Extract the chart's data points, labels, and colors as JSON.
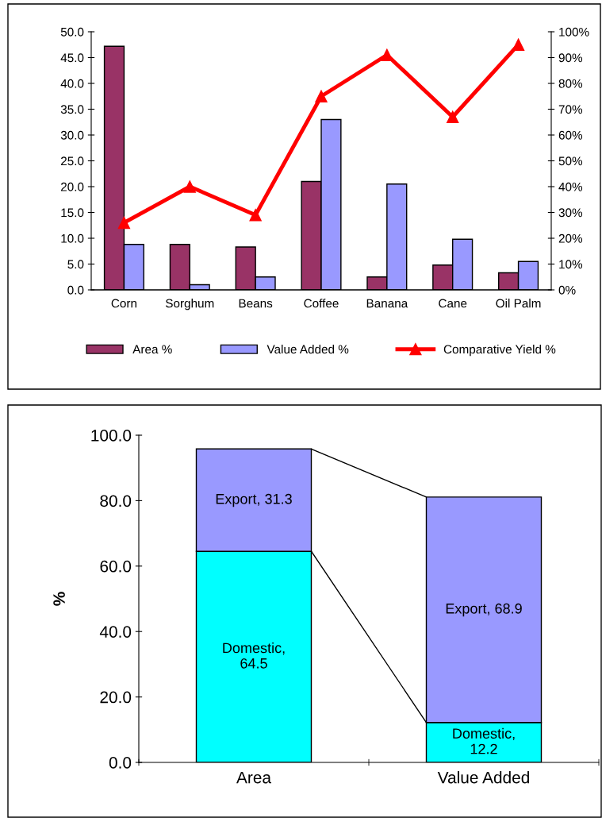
{
  "chart_data": [
    {
      "type": "bar",
      "categories": [
        "Corn",
        "Sorghum",
        "Beans",
        "Coffee",
        "Banana",
        "Cane",
        "Oil Palm"
      ],
      "series": [
        {
          "name": "Area %",
          "color": "#993366",
          "values": [
            47.2,
            8.8,
            8.3,
            21.0,
            2.5,
            4.8,
            3.3
          ]
        },
        {
          "name": "Value Added %",
          "color": "#9999ff",
          "values": [
            8.8,
            1.0,
            2.5,
            33.0,
            20.5,
            9.8,
            5.5
          ]
        },
        {
          "name": "Comparative Yield %",
          "type": "line",
          "axis": "y2",
          "color": "#ff0000",
          "marker": "triangle",
          "values": [
            26,
            40,
            29,
            75,
            91,
            67,
            95
          ]
        }
      ],
      "ylim": [
        0,
        50
      ],
      "yticks": [
        {
          "value": 0,
          "label": "0.0"
        },
        {
          "value": 5,
          "label": "5.0"
        },
        {
          "value": 10,
          "label": "10.0"
        },
        {
          "value": 15,
          "label": "15.0"
        },
        {
          "value": 20,
          "label": "20.0"
        },
        {
          "value": 25,
          "label": "25.0"
        },
        {
          "value": 30,
          "label": "30.0"
        },
        {
          "value": 35,
          "label": "35.0"
        },
        {
          "value": 40,
          "label": "40.0"
        },
        {
          "value": 45,
          "label": "45.0"
        },
        {
          "value": 50,
          "label": "50.0"
        }
      ],
      "y2lim": [
        0,
        100
      ],
      "y2ticks": [
        {
          "value": 0,
          "label": "0%"
        },
        {
          "value": 10,
          "label": "10%"
        },
        {
          "value": 20,
          "label": "20%"
        },
        {
          "value": 30,
          "label": "30%"
        },
        {
          "value": 40,
          "label": "40%"
        },
        {
          "value": 50,
          "label": "50%"
        },
        {
          "value": 60,
          "label": "60%"
        },
        {
          "value": 70,
          "label": "70%"
        },
        {
          "value": 80,
          "label": "80%"
        },
        {
          "value": 90,
          "label": "90%"
        },
        {
          "value": 100,
          "label": "100%"
        }
      ],
      "grid": false,
      "legend": "bottom"
    },
    {
      "type": "bar",
      "stacked": true,
      "categories": [
        "Area",
        "Value Added"
      ],
      "ylabel": "%",
      "series": [
        {
          "color": "#00ffff",
          "values": [
            64.5,
            12.2
          ],
          "value_labels": [
            "Domestic,\n64.5",
            "Domestic,\n12.2"
          ]
        },
        {
          "color": "#9999ff",
          "values": [
            31.3,
            68.9
          ],
          "value_labels": [
            "Export, 31.3",
            "Export, 68.9"
          ]
        }
      ],
      "ylim": [
        0,
        100
      ],
      "yticks": [
        {
          "value": 0,
          "label": "0.0"
        },
        {
          "value": 20,
          "label": "20.0"
        },
        {
          "value": 40,
          "label": "40.0"
        },
        {
          "value": 60,
          "label": "60.0"
        },
        {
          "value": 80,
          "label": "80.0"
        },
        {
          "value": 100,
          "label": "100.0"
        }
      ],
      "grid": false,
      "legend": false
    }
  ]
}
